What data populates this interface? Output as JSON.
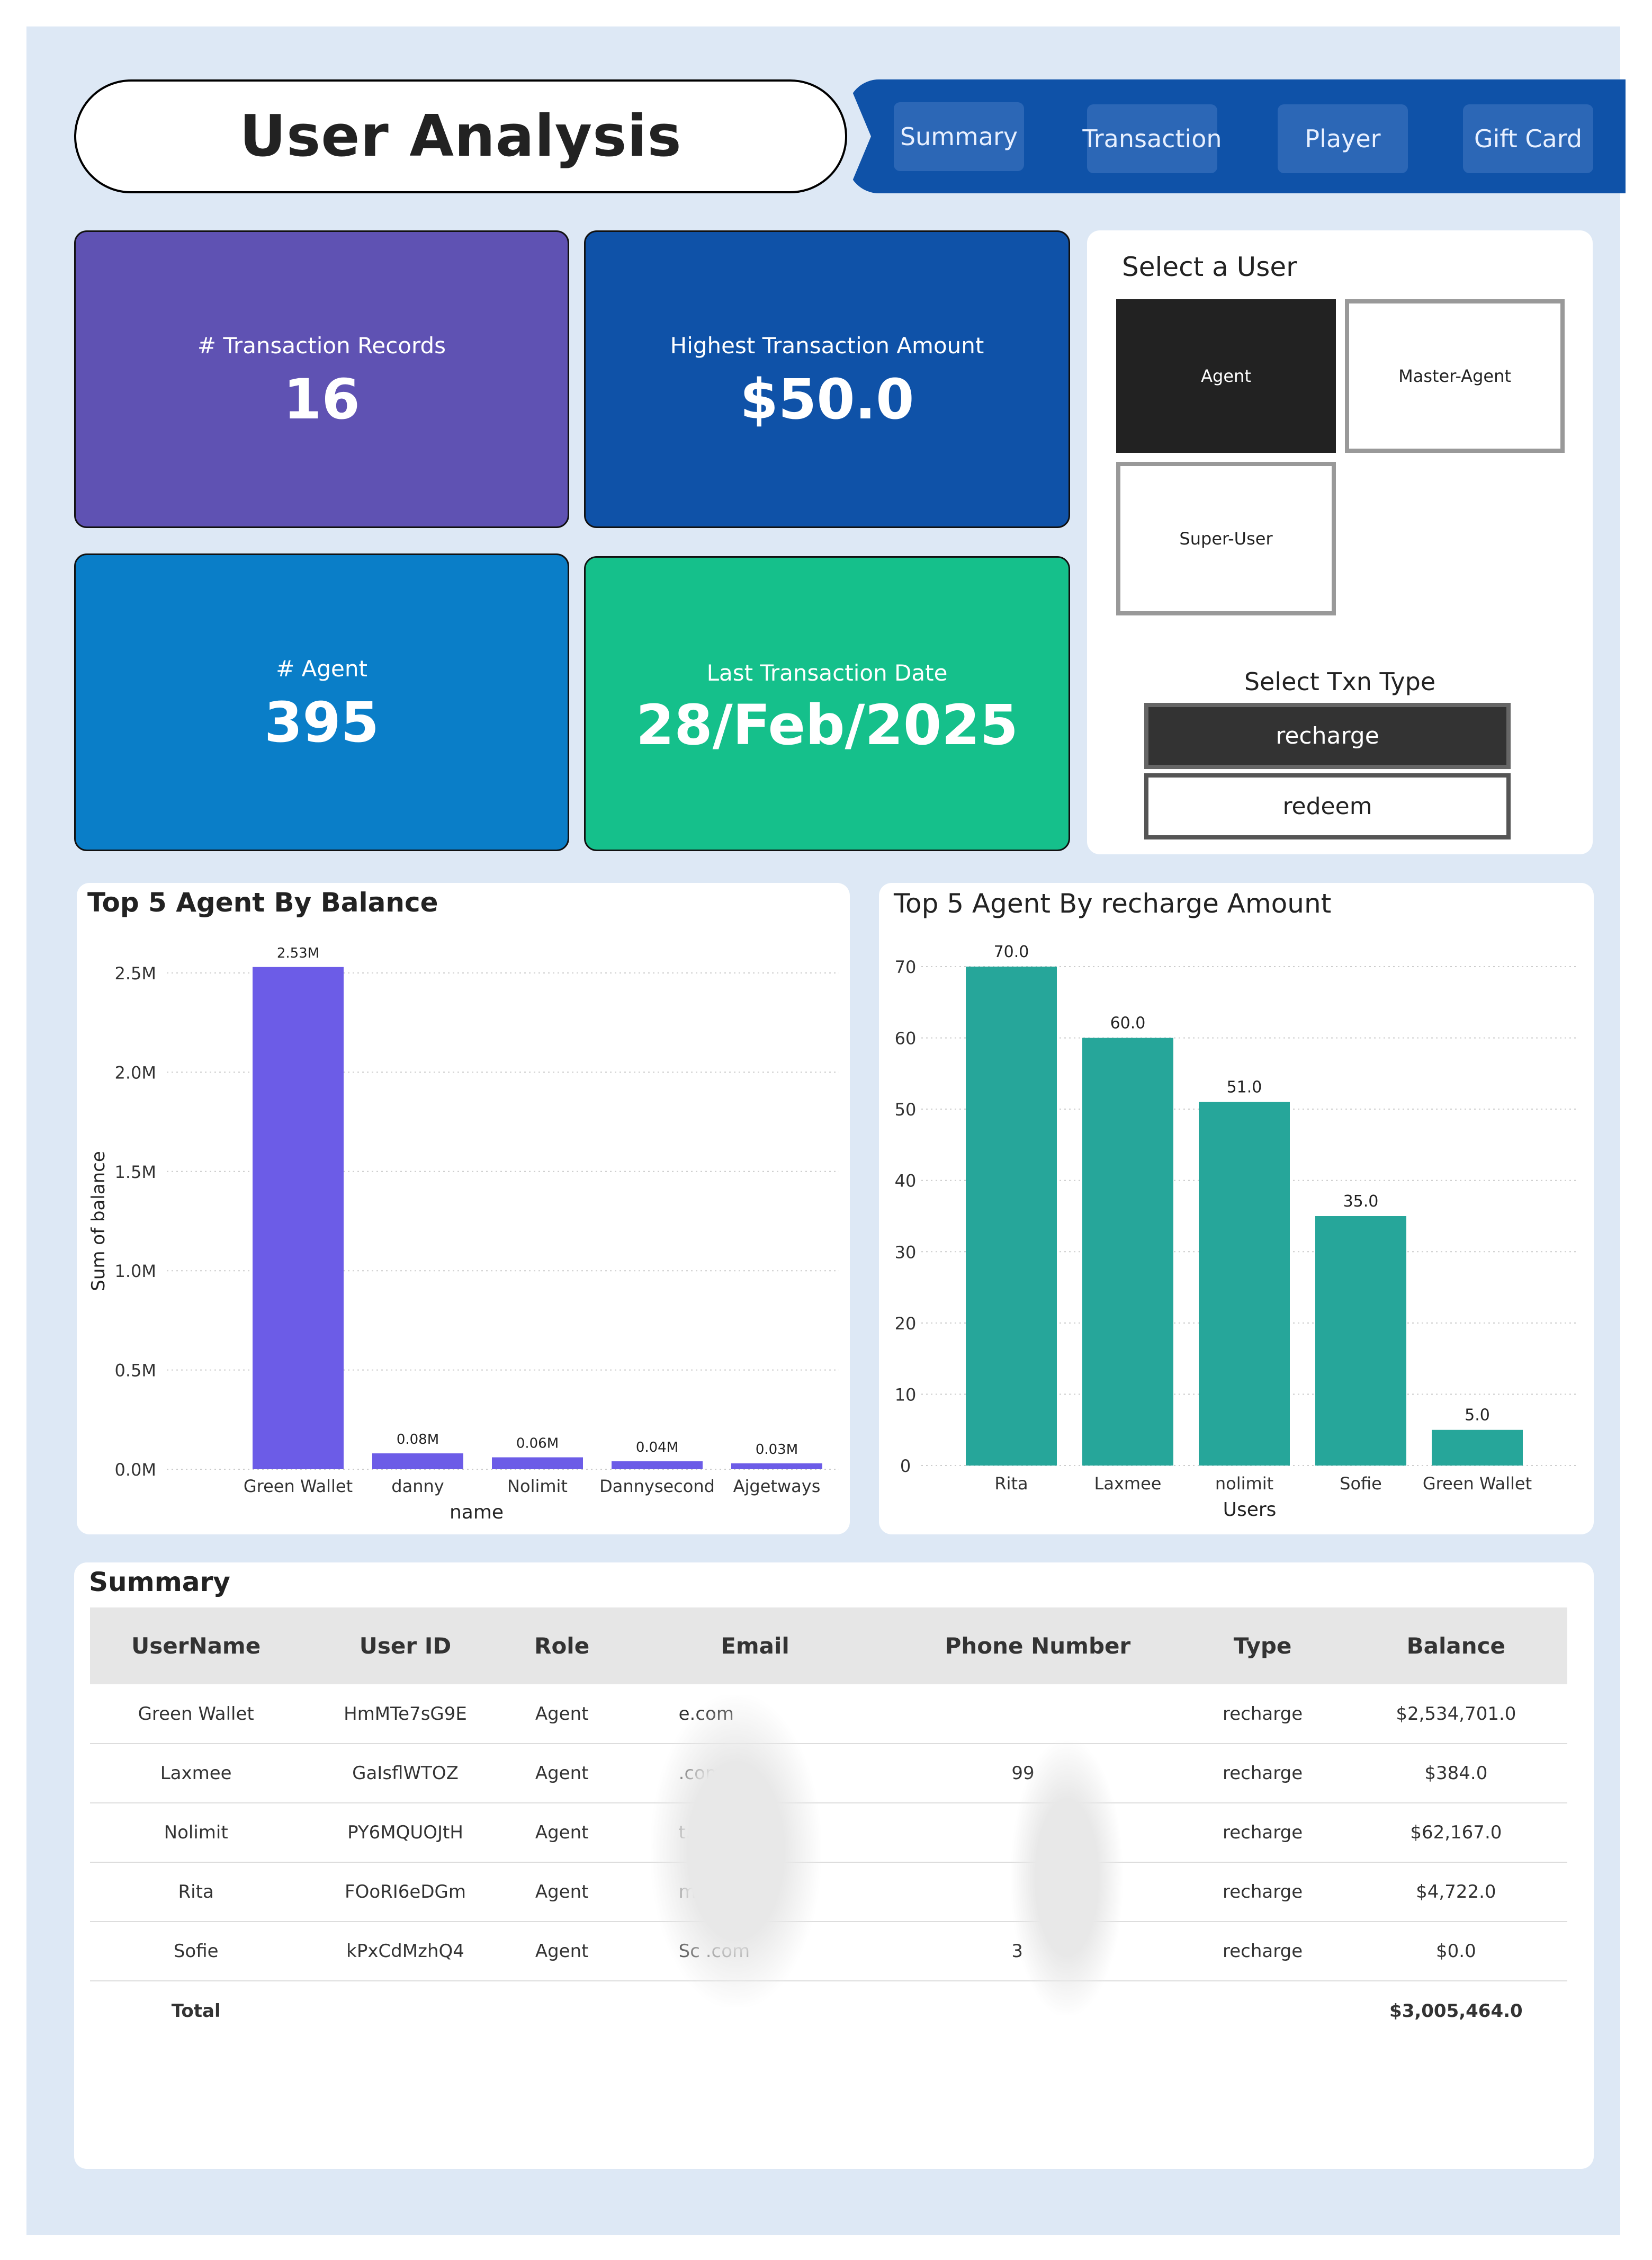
{
  "header": {
    "title": "User Analysis",
    "nav": [
      "Summary",
      "Transaction",
      "Player",
      "Gift Card"
    ]
  },
  "kpis": {
    "transaction_records": {
      "label": "# Transaction Records",
      "value": "16"
    },
    "highest_amount": {
      "label": "Highest Transaction Amount",
      "value": "$50.0"
    },
    "agent_count": {
      "label": "# Agent",
      "value": "395"
    },
    "last_date": {
      "label": "Last Transaction Date",
      "value": "28/Feb/2025"
    }
  },
  "user_select": {
    "title": "Select a User",
    "options": [
      "Agent",
      "Master-Agent",
      "Super-User"
    ],
    "selected": "Agent"
  },
  "txn_select": {
    "title": "Select Txn Type",
    "options": [
      "recharge",
      "redeem"
    ],
    "selected": "recharge"
  },
  "colors": {
    "purple_card": "#5f52b3",
    "navy_card": "#0f52a8",
    "blue_card": "#0a7ec8",
    "green_card": "#15c08b",
    "bar_purple": "#6c5ce7",
    "bar_teal": "#26a69a"
  },
  "chart_data": [
    {
      "type": "bar",
      "title": "Top 5 Agent By Balance",
      "xlabel": "name",
      "ylabel": "Sum of balance",
      "categories": [
        "Green Wallet",
        "danny",
        "Nolimit",
        "Dannysecond",
        "Ajgetways"
      ],
      "values": [
        2.53,
        0.08,
        0.06,
        0.04,
        0.03
      ],
      "data_labels": [
        "2.53M",
        "0.08M",
        "0.06M",
        "0.04M",
        "0.03M"
      ],
      "yticks": [
        "0.0M",
        "0.5M",
        "1.0M",
        "1.5M",
        "2.0M",
        "2.5M"
      ],
      "ylim": [
        0,
        2.5
      ],
      "grid": true
    },
    {
      "type": "bar",
      "title": "Top 5 Agent By recharge Amount",
      "xlabel": "Users",
      "ylabel": "",
      "categories": [
        "Rita",
        "Laxmee",
        "nolimit",
        "Sofie",
        "Green Wallet"
      ],
      "values": [
        70.0,
        60.0,
        51.0,
        35.0,
        5.0
      ],
      "data_labels": [
        "70.0",
        "60.0",
        "51.0",
        "35.0",
        "5.0"
      ],
      "yticks": [
        "0",
        "10",
        "20",
        "30",
        "40",
        "50",
        "60",
        "70"
      ],
      "ylim": [
        0,
        70
      ],
      "grid": true
    }
  ],
  "summary": {
    "title": "Summary",
    "columns": [
      "UserName",
      "User ID",
      "Role",
      "Email",
      "Phone Number",
      "Type",
      "Balance"
    ],
    "rows": [
      [
        "Green Wallet",
        "HmMTe7sG9E",
        "Agent",
        "e.com",
        "",
        "recharge",
        "$2,534,701.0"
      ],
      [
        "Laxmee",
        "GaIsflWTOZ",
        "Agent",
        ".com",
        "99",
        "recharge",
        "$384.0"
      ],
      [
        "Nolimit",
        "PY6MQUOJtH",
        "Agent",
        "t.com",
        "",
        "recharge",
        "$62,167.0"
      ],
      [
        "Rita",
        "FOoRI6eDGm",
        "Agent",
        "m",
        "",
        "recharge",
        "$4,722.0"
      ],
      [
        "Sofie",
        "kPxCdMzhQ4",
        "Agent",
        "Sc .com",
        "3",
        "recharge",
        "$0.0"
      ]
    ],
    "total_label": "Total",
    "total_value": "$3,005,464.0"
  }
}
